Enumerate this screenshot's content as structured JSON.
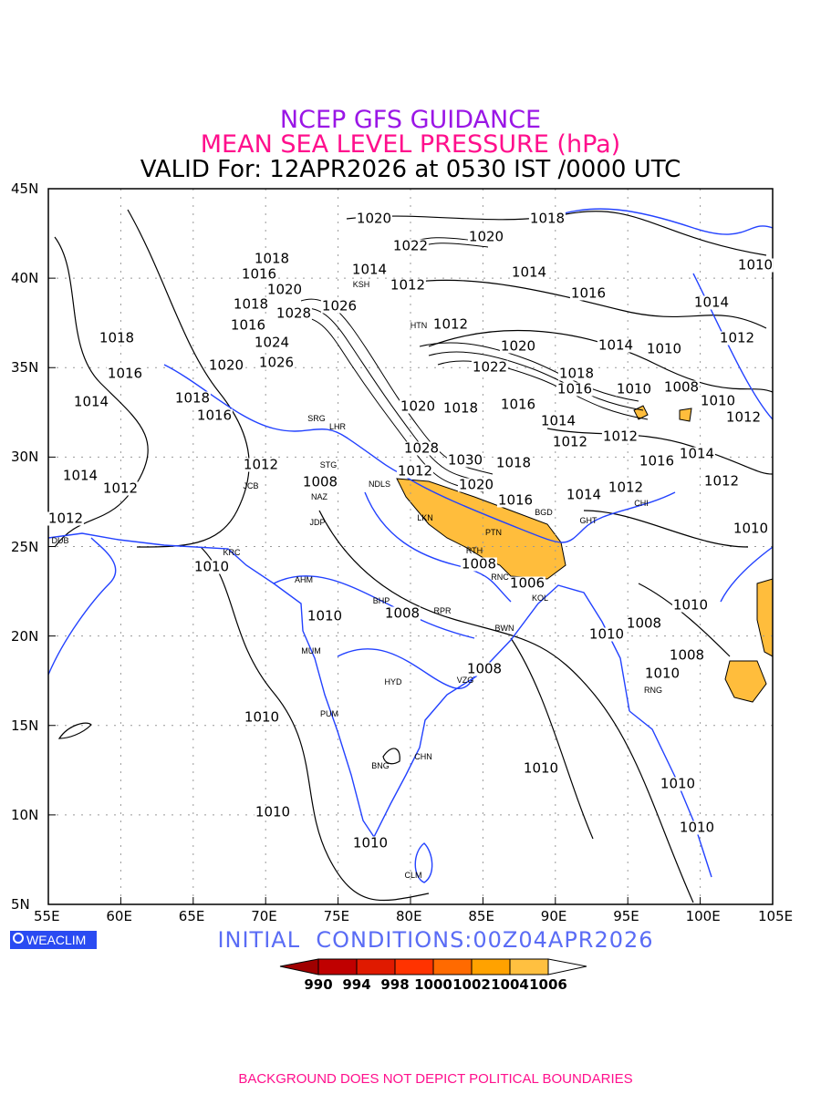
{
  "title": {
    "line1": "NCEP GFS GUIDANCE",
    "line2": "MEAN SEA LEVEL PRESSURE (hPa)",
    "line3": "VALID For: 12APR2026 at 0530 IST /0000 UTC"
  },
  "axes": {
    "lat_labels": [
      "45N",
      "40N",
      "35N",
      "30N",
      "25N",
      "20N",
      "15N",
      "10N",
      "5N"
    ],
    "lon_labels": [
      "55E",
      "60E",
      "65E",
      "70E",
      "75E",
      "80E",
      "85E",
      "90E",
      "95E",
      "100E",
      "105E"
    ]
  },
  "contour_labels": [
    "1020",
    "1018",
    "1022",
    "1020",
    "1018",
    "1016",
    "1014",
    "1012",
    "1014",
    "1010",
    "1020",
    "1016",
    "1014",
    "1018",
    "1028",
    "1026",
    "1012",
    "1016",
    "1018",
    "1024",
    "1020",
    "1014",
    "1010",
    "1012",
    "1016",
    "1020",
    "1026",
    "1022",
    "1018",
    "1014",
    "1018",
    "1016",
    "1016",
    "1010",
    "1008",
    "1010",
    "1020",
    "1018",
    "1016",
    "1014",
    "1012",
    "1012",
    "1012",
    "1028",
    "1030",
    "1018",
    "1016",
    "1014",
    "1012",
    "1014",
    "1012",
    "1008",
    "1012",
    "1020",
    "1016",
    "1014",
    "1012",
    "1012",
    "1012",
    "1010",
    "1008",
    "1006",
    "1010",
    "1010",
    "1008",
    "1010",
    "1008",
    "1010",
    "1008",
    "1008",
    "1010",
    "1010",
    "1010",
    "1010",
    "1010",
    "1010",
    "1010"
  ],
  "cities": [
    "KSH",
    "HTN",
    "SRG",
    "LHR",
    "STG",
    "NDLS",
    "JCB",
    "NAZ",
    "JDP",
    "LKN",
    "PTN",
    "RTH",
    "RNC",
    "KOL",
    "BGD",
    "GHT",
    "CHI",
    "DUB",
    "KRC",
    "AHM",
    "BHP",
    "RPR",
    "BWN",
    "MUM",
    "HYD",
    "VZG",
    "RNG",
    "PUM",
    "CHN",
    "BNG",
    "CLM"
  ],
  "logo": "WEACLIM",
  "initial_conditions": "INITIAL  CONDITIONS:00Z04APR2026",
  "legend": {
    "labels": [
      "990",
      "994",
      "998",
      "1000",
      "1002",
      "1004",
      "1006"
    ],
    "colors": [
      "#a00000",
      "#c00000",
      "#e01a00",
      "#ff3300",
      "#ff6a00",
      "#ffa200",
      "#ffc040",
      "#ffffff"
    ]
  },
  "colors": {
    "fill_low": "#ffbd3c",
    "coast": "#2342ff",
    "contour": "#000000"
  },
  "footer": "BACKGROUND DOES NOT DEPICT POLITICAL BOUNDARIES"
}
